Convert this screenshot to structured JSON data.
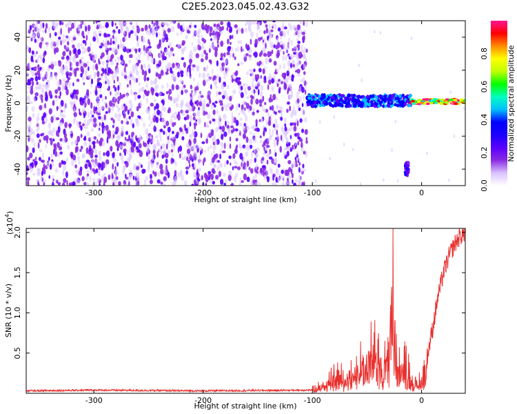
{
  "title": "C2E5.2023.045.02.43.G32",
  "colors": {
    "snr_line": "#e8302e",
    "axis": "#000000",
    "colormap": [
      "#ffffff",
      "#d9c2ff",
      "#8a2be2",
      "#5a00ff",
      "#1a00ff",
      "#0000ff",
      "#00bfff",
      "#00ffbf",
      "#00ff00",
      "#bfff00",
      "#ffff00",
      "#ff8c00",
      "#ff0000",
      "#ff1493"
    ]
  },
  "chart_data": [
    {
      "type": "heatmap",
      "xlabel": "Height of straight line (km)",
      "ylabel": "Frequency (Hz)",
      "xlim": [
        -362,
        40
      ],
      "ylim": [
        -50,
        50
      ],
      "x_ticks": [
        -300,
        -200,
        -100,
        0
      ],
      "x_tick_labels": [
        "-300",
        "-200",
        "-100",
        "0"
      ],
      "y_ticks": [
        -40,
        -20,
        0,
        20,
        40
      ],
      "y_tick_labels": [
        "-40",
        "-20",
        "0",
        "20",
        "40"
      ],
      "noise_region": {
        "x_range": [
          -362,
          -105
        ],
        "y_range": [
          -50,
          50
        ],
        "typical_amplitude": 0.1
      },
      "features": [
        {
          "x_range": [
            -105,
            -10
          ],
          "freq_center": 1.5,
          "freq_halfwidth": 3.5,
          "amplitude": 0.45
        },
        {
          "x_range": [
            -10,
            40
          ],
          "freq_center": 1.0,
          "freq_halfwidth": 1.5,
          "amplitude": 0.95
        },
        {
          "x_range": [
            -15,
            -12
          ],
          "freq_center": -40,
          "freq_halfwidth": 4,
          "amplitude": 0.3
        },
        {
          "x_range": [
            -296,
            -294
          ],
          "freq_center": 11,
          "freq_halfwidth": 1,
          "amplitude": 0.3
        }
      ],
      "colorbar": {
        "label": "Normalized spectral amplitude",
        "range": [
          0,
          1
        ],
        "ticks": [
          0.0,
          0.2,
          0.4,
          0.6,
          0.8
        ],
        "tick_labels": [
          "0.0",
          "0.2",
          "0.4",
          "0.6",
          "0.8"
        ]
      }
    },
    {
      "type": "line",
      "xlabel": "Height of straight line (km)",
      "ylabel": "SNR (10 * v/v)",
      "y_multiplier": "(x10",
      "y_multiplier_exp": "4",
      "y_multiplier_close": ")",
      "xlim": [
        -362,
        40
      ],
      "ylim": [
        0,
        2.05
      ],
      "x_ticks": [
        -300,
        -200,
        -100,
        0
      ],
      "x_tick_labels": [
        "-300",
        "-200",
        "-100",
        "0"
      ],
      "y_ticks": [
        0.5,
        1.0,
        1.5,
        2.0
      ],
      "y_tick_labels": [
        "0.5",
        "1.0",
        "1.5",
        "2.0"
      ],
      "series": [
        {
          "x": [
            -362,
            -300,
            -200,
            -100,
            -90,
            -80,
            -70,
            -60,
            -50,
            -45,
            -40,
            -35,
            -30,
            -27,
            -25,
            -20,
            -15,
            -10,
            -5,
            0,
            5,
            10,
            15,
            20,
            25,
            30,
            35,
            40
          ],
          "y": [
            0.03,
            0.04,
            0.03,
            0.04,
            0.1,
            0.2,
            0.2,
            0.3,
            0.35,
            0.5,
            0.45,
            0.3,
            0.55,
            1.2,
            0.6,
            0.3,
            0.35,
            0.2,
            0.1,
            0.15,
            0.45,
            0.8,
            1.2,
            1.5,
            1.7,
            1.85,
            1.95,
            2.0
          ]
        }
      ]
    }
  ]
}
